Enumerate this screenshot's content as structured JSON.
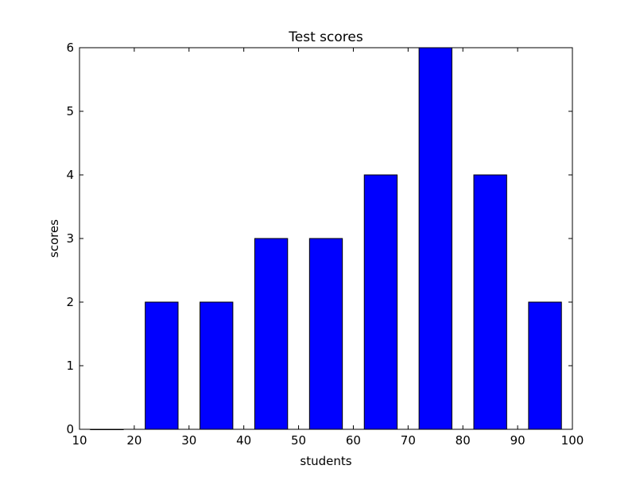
{
  "chart_data": {
    "type": "bar",
    "title": "Test scores",
    "xlabel": "students",
    "ylabel": "scores",
    "xlim": [
      10,
      100
    ],
    "ylim": [
      0,
      6
    ],
    "xticks": [
      "10",
      "20",
      "30",
      "40",
      "50",
      "60",
      "70",
      "80",
      "90",
      "100"
    ],
    "yticks": [
      "0",
      "1",
      "2",
      "3",
      "4",
      "5",
      "6"
    ],
    "bar_width": 6,
    "x": [
      15,
      25,
      35,
      45,
      55,
      65,
      75,
      85,
      95
    ],
    "values": [
      0,
      2,
      2,
      3,
      3,
      4,
      6,
      4,
      2
    ],
    "color": "#0000ff",
    "edge_color": "#000000",
    "grid": false
  }
}
